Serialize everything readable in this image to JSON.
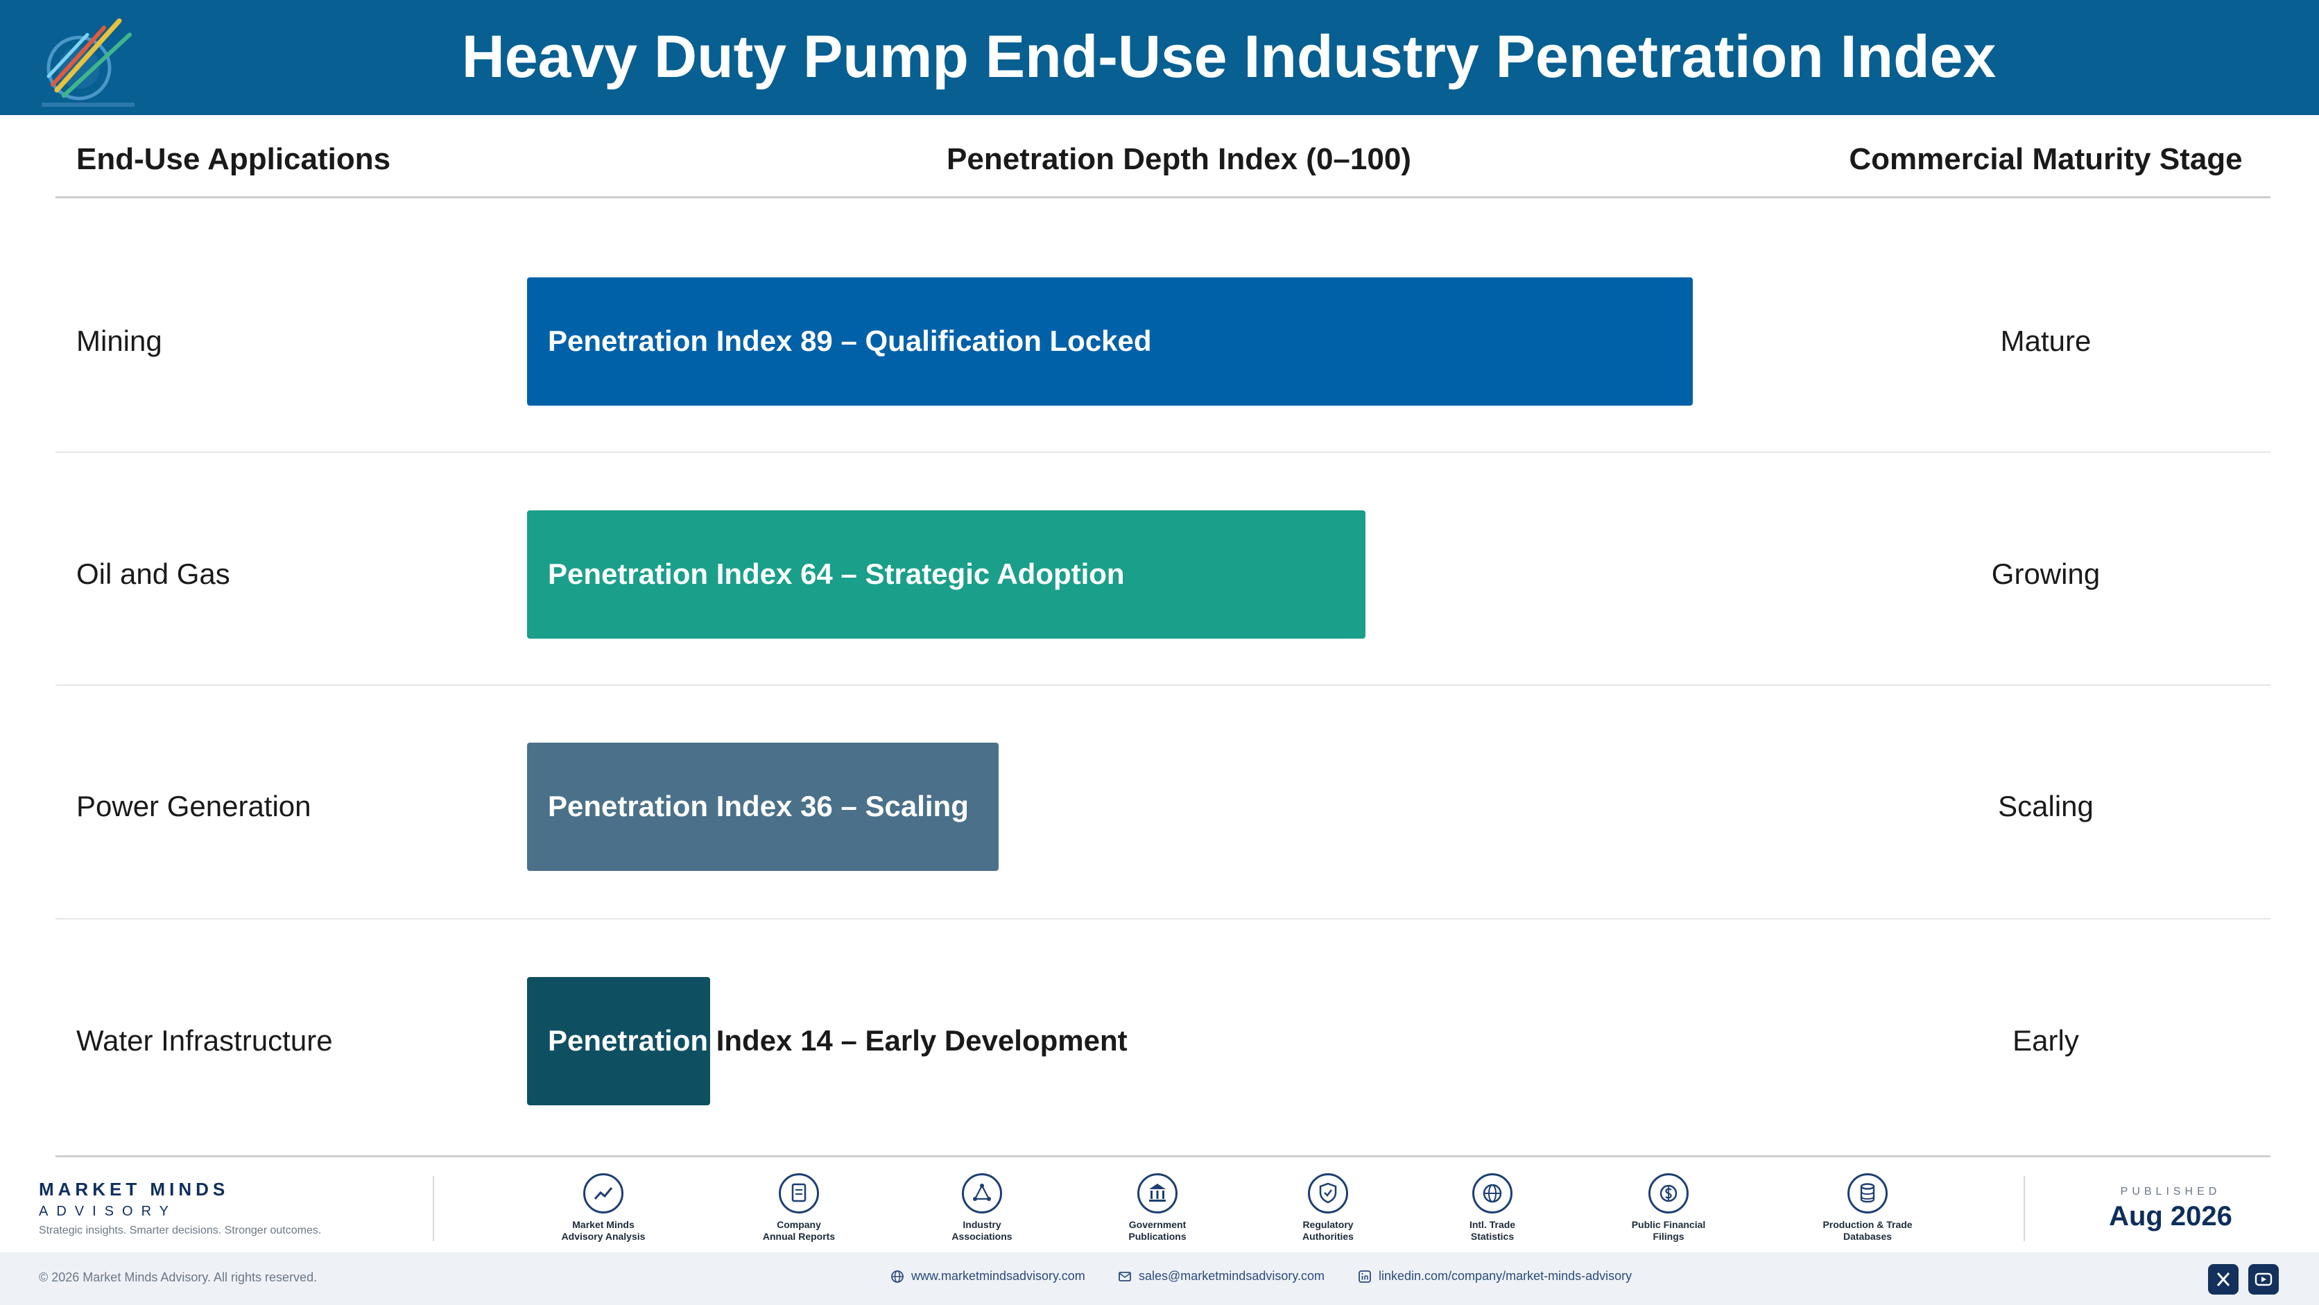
{
  "header": {
    "title": "Heavy Duty Pump End-Use Industry Penetration Index"
  },
  "columns": {
    "applications": "End-Use Applications",
    "index": "Penetration Depth Index (0–100)",
    "stage": "Commercial Maturity Stage"
  },
  "chart_data": {
    "type": "bar",
    "orientation": "horizontal",
    "categories": [
      "Mining",
      "Oil and Gas",
      "Power Generation",
      "Water Infrastructure"
    ],
    "values": [
      89,
      64,
      36,
      14
    ],
    "bar_labels": [
      "Penetration Index 89 – Qualification Locked",
      "Penetration Index 64 – Strategic Adoption",
      "Penetration Index 36 – Scaling",
      "Penetration Index 14 – Early Development"
    ],
    "stages": [
      "Mature",
      "Growing",
      "Scaling",
      "Early"
    ],
    "colors": [
      "#0061a8",
      "#1a9f8a",
      "#4a7189",
      "#0f4f62"
    ],
    "xlim": [
      0,
      100
    ],
    "title": "",
    "xlabel": "Penetration Depth Index (0–100)",
    "ylabel": "End-Use Applications"
  },
  "footer": {
    "brand": {
      "name": "MARKET MINDS",
      "sub": "ADVISORY",
      "tagline": "Strategic insights. Smarter decisions. Stronger outcomes."
    },
    "sources": [
      {
        "line1": "Market Minds",
        "line2": "Advisory Analysis",
        "icon": "chart-line-icon"
      },
      {
        "line1": "Company",
        "line2": "Annual Reports",
        "icon": "document-icon"
      },
      {
        "line1": "Industry",
        "line2": "Associations",
        "icon": "network-icon"
      },
      {
        "line1": "Government",
        "line2": "Publications",
        "icon": "building-icon"
      },
      {
        "line1": "Regulatory",
        "line2": "Authorities",
        "icon": "shield-icon"
      },
      {
        "line1": "Intl. Trade",
        "line2": "Statistics",
        "icon": "globe-icon"
      },
      {
        "line1": "Public Financial",
        "line2": "Filings",
        "icon": "dollar-icon"
      },
      {
        "line1": "Production & Trade",
        "line2": "Databases",
        "icon": "database-icon"
      }
    ],
    "published_label": "PUBLISHED",
    "published_date": "Aug 2026",
    "copyright": "© 2026 Market Minds Advisory. All rights reserved.",
    "website": "www.marketmindsadvisory.com",
    "email": "sales@marketmindsadvisory.com",
    "linkedin": "linkedin.com/company/market-minds-advisory",
    "social": [
      {
        "icon": "x-icon"
      },
      {
        "icon": "youtube-icon"
      }
    ]
  }
}
